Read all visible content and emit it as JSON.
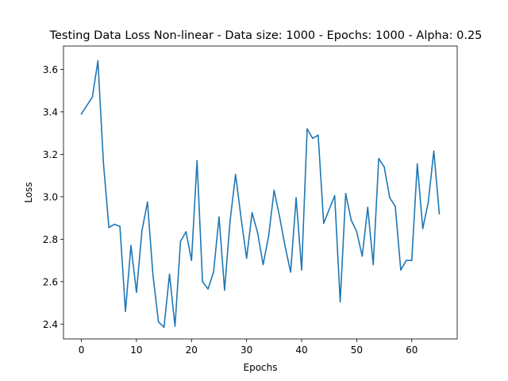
{
  "chart_data": {
    "type": "line",
    "title": "Testing Data Loss Non-linear - Data size: 1000 - Epochs: 1000 - Alpha: 0.25",
    "xlabel": "Epochs",
    "ylabel": "Loss",
    "xlim": [
      -3.25,
      68.25
    ],
    "ylim": [
      2.33,
      3.71
    ],
    "xticks": [
      0,
      10,
      20,
      30,
      40,
      50,
      60
    ],
    "yticks": [
      2.4,
      2.6,
      2.8,
      3.0,
      3.2,
      3.4,
      3.6
    ],
    "ytick_labels": [
      "2.4",
      "2.6",
      "2.8",
      "3.0",
      "3.2",
      "3.4",
      "3.6"
    ],
    "grid": false,
    "line_color": "#1f77b4",
    "series": [
      {
        "x": [
          0,
          1,
          2,
          3,
          4,
          5,
          6,
          7,
          8,
          9,
          10,
          11,
          12,
          13,
          14,
          15,
          16,
          17,
          18,
          19,
          20,
          21,
          22,
          23,
          24,
          25,
          26,
          27,
          28,
          29,
          30,
          31,
          32,
          33,
          34,
          35,
          36,
          37,
          38,
          39,
          40,
          41,
          42,
          43,
          44,
          45,
          46,
          47,
          48,
          49,
          50,
          51,
          52,
          53,
          54,
          55,
          56,
          57,
          58,
          59,
          60,
          61,
          62,
          63,
          64,
          65
        ],
        "values": [
          3.39,
          3.43,
          3.47,
          3.64,
          3.16,
          2.855,
          2.87,
          2.86,
          2.46,
          2.77,
          2.55,
          2.84,
          2.975,
          2.63,
          2.41,
          2.385,
          2.635,
          2.39,
          2.79,
          2.835,
          2.7,
          3.17,
          2.6,
          2.565,
          2.645,
          2.905,
          2.56,
          2.885,
          3.105,
          2.9,
          2.71,
          2.925,
          2.83,
          2.68,
          2.815,
          3.03,
          2.905,
          2.765,
          2.645,
          2.995,
          2.655,
          3.32,
          3.275,
          3.29,
          2.875,
          2.94,
          3.005,
          2.505,
          3.015,
          2.89,
          2.835,
          2.72,
          2.95,
          2.68,
          3.18,
          3.14,
          2.995,
          2.955,
          2.655,
          2.7,
          2.7,
          3.155,
          2.85,
          2.975,
          3.215,
          2.92
        ]
      }
    ]
  }
}
